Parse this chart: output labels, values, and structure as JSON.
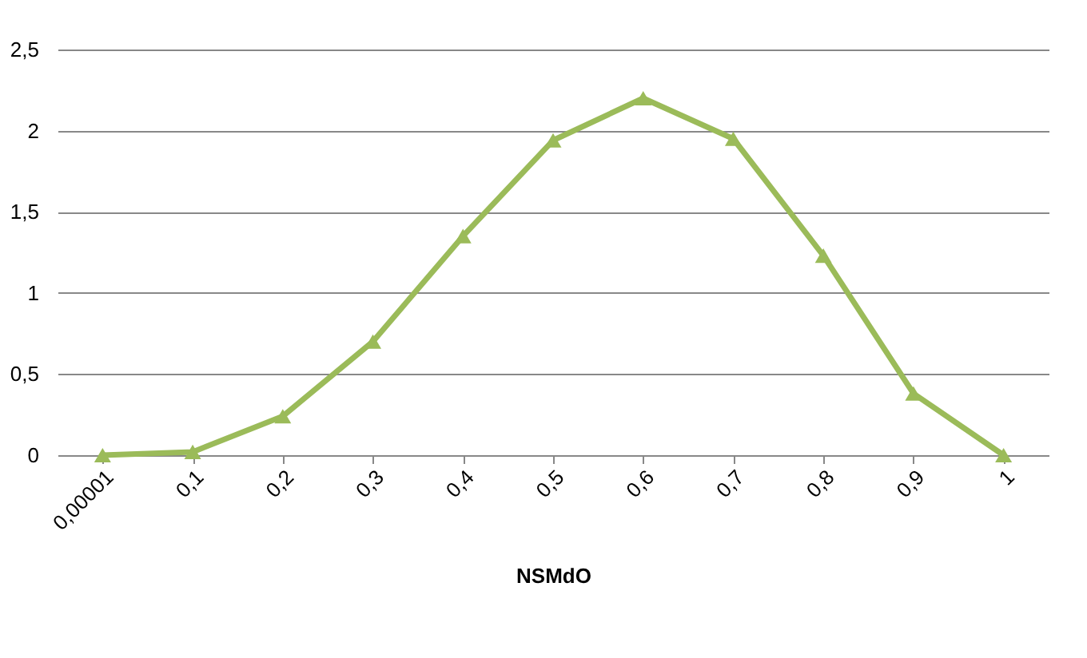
{
  "chart_data": {
    "type": "line",
    "xlabel": "NSMdO",
    "categories": [
      "0,00001",
      "0,1",
      "0,2",
      "0,3",
      "0,4",
      "0,5",
      "0,6",
      "0,7",
      "0,8",
      "0,9",
      "1"
    ],
    "series": [
      {
        "color": "#9bbb59",
        "values": [
          0,
          0.02,
          0.24,
          0.7,
          1.35,
          1.94,
          2.2,
          1.95,
          1.23,
          0.38,
          0
        ]
      }
    ],
    "ylim": [
      0,
      2.5
    ],
    "yticks": [
      0,
      {
        "value": 0.5,
        "label": "0,5"
      },
      1,
      {
        "value": 1.5,
        "label": "1,5"
      },
      2,
      {
        "value": 2.5,
        "label": "2,5"
      }
    ],
    "grid": "y",
    "marker": "triangle",
    "line_style": "solid"
  }
}
